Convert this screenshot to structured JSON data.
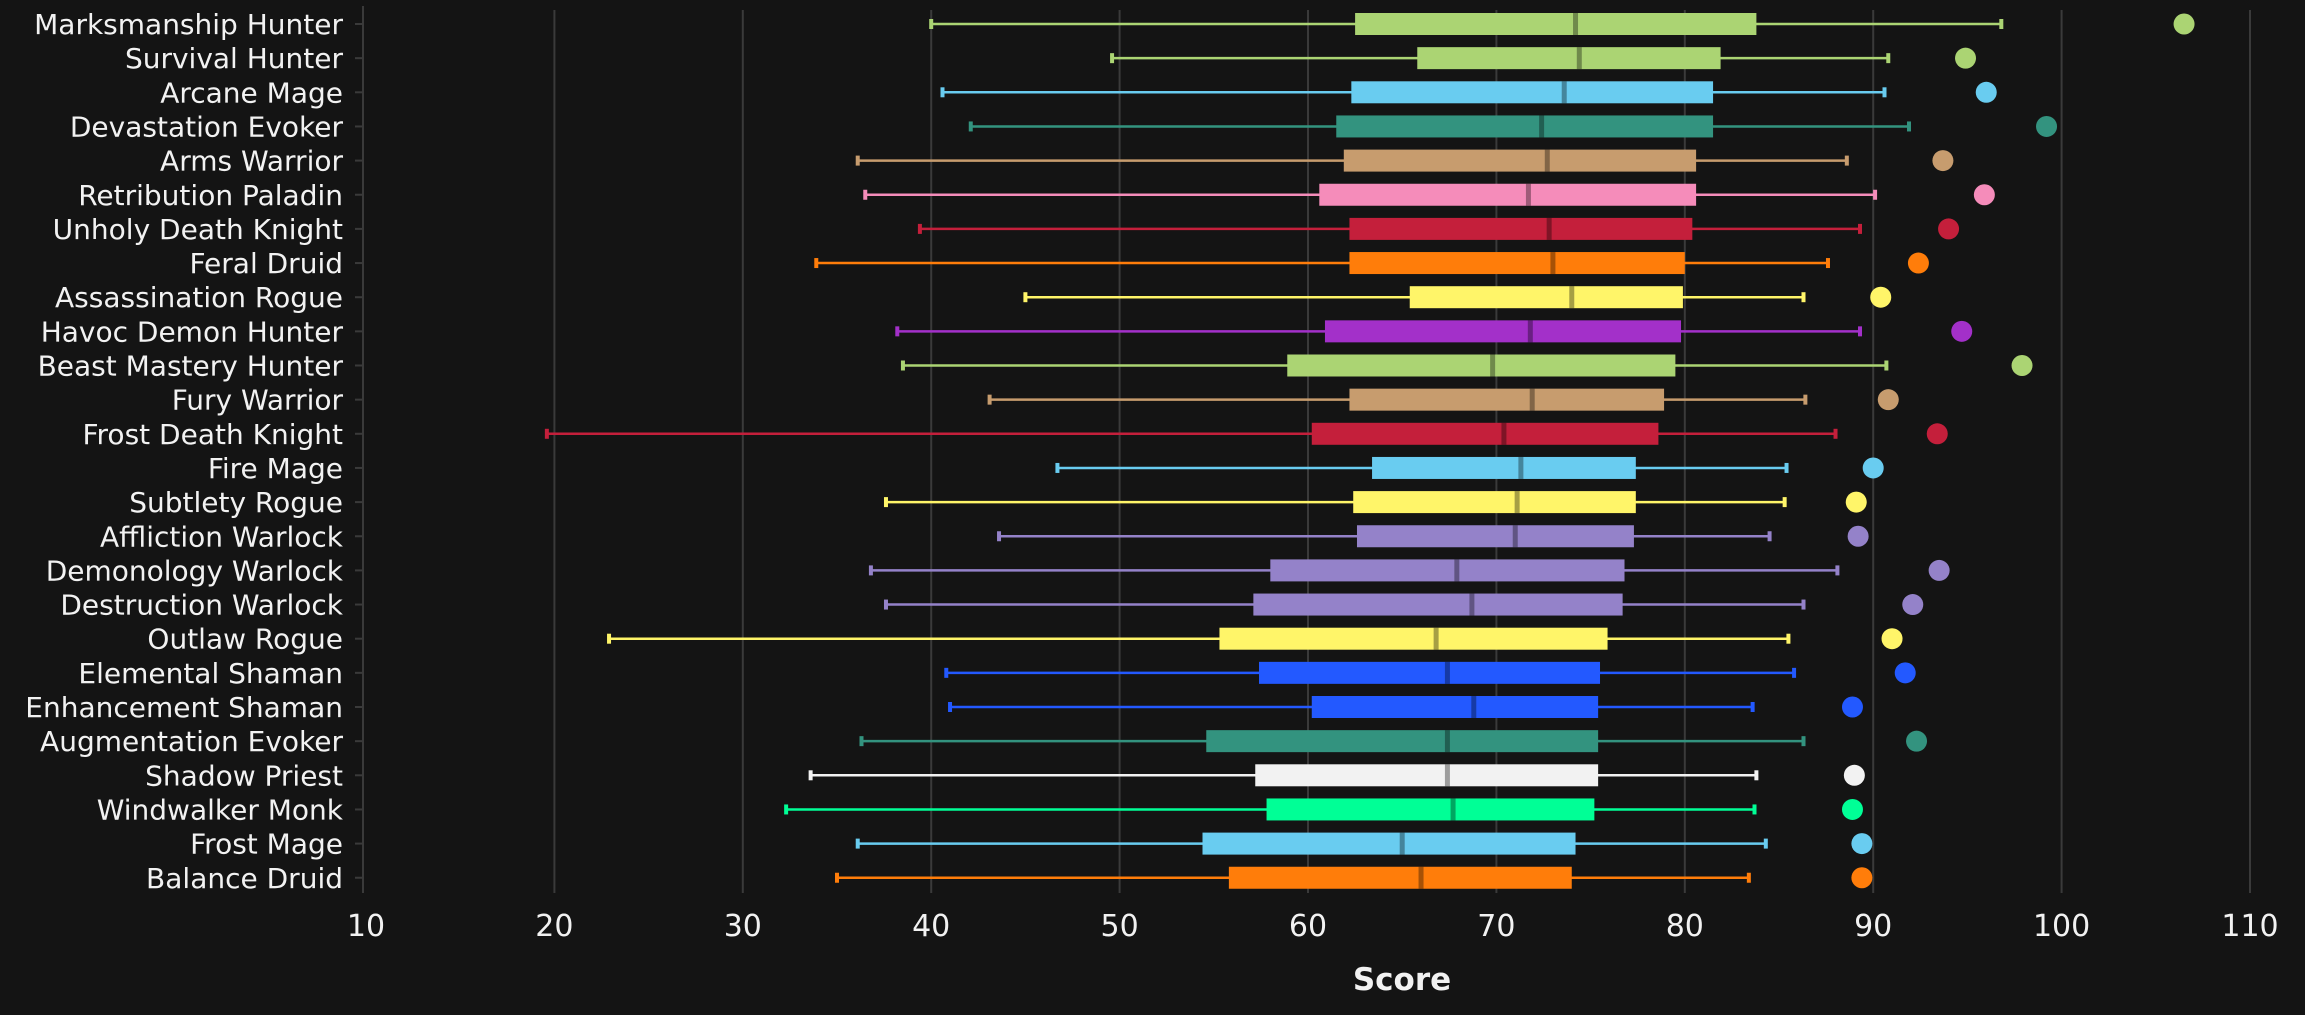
{
  "chart_data": {
    "type": "boxplot",
    "xlabel": "Score",
    "xlim": [
      10,
      110
    ],
    "xticks": [
      10,
      20,
      30,
      40,
      50,
      60,
      70,
      80,
      90,
      100,
      110
    ],
    "grid": "vertical",
    "series": [
      {
        "name": "Marksmanship Hunter",
        "color": "#abd473",
        "min": 40.0,
        "q1": 62.5,
        "median": 74.2,
        "q3": 83.8,
        "max": 96.8,
        "outlier": 106.5
      },
      {
        "name": "Survival Hunter",
        "color": "#abd473",
        "min": 49.6,
        "q1": 65.8,
        "median": 74.4,
        "q3": 81.9,
        "max": 90.8,
        "outlier": 94.9
      },
      {
        "name": "Arcane Mage",
        "color": "#69ccf0",
        "min": 40.6,
        "q1": 62.3,
        "median": 73.6,
        "q3": 81.5,
        "max": 90.6,
        "outlier": 96.0
      },
      {
        "name": "Devastation Evoker",
        "color": "#33937f",
        "min": 42.1,
        "q1": 61.5,
        "median": 72.4,
        "q3": 81.5,
        "max": 91.9,
        "outlier": 99.2
      },
      {
        "name": "Arms Warrior",
        "color": "#c79c6e",
        "min": 36.1,
        "q1": 61.9,
        "median": 72.7,
        "q3": 80.6,
        "max": 88.6,
        "outlier": 93.7
      },
      {
        "name": "Retribution Paladin",
        "color": "#f58cba",
        "min": 36.5,
        "q1": 60.6,
        "median": 71.7,
        "q3": 80.6,
        "max": 90.1,
        "outlier": 95.9
      },
      {
        "name": "Unholy Death Knight",
        "color": "#c41f3b",
        "min": 39.4,
        "q1": 62.2,
        "median": 72.8,
        "q3": 80.4,
        "max": 89.3,
        "outlier": 94.0
      },
      {
        "name": "Feral Druid",
        "color": "#ff7d0a",
        "min": 33.9,
        "q1": 62.2,
        "median": 73.0,
        "q3": 80.0,
        "max": 87.6,
        "outlier": 92.4
      },
      {
        "name": "Assassination Rogue",
        "color": "#fff569",
        "min": 45.0,
        "q1": 65.4,
        "median": 74.0,
        "q3": 79.9,
        "max": 86.3,
        "outlier": 90.4
      },
      {
        "name": "Havoc Demon Hunter",
        "color": "#a330c9",
        "min": 38.2,
        "q1": 60.9,
        "median": 71.8,
        "q3": 79.8,
        "max": 89.3,
        "outlier": 94.7
      },
      {
        "name": "Beast Mastery Hunter",
        "color": "#abd473",
        "min": 38.5,
        "q1": 58.9,
        "median": 69.8,
        "q3": 79.5,
        "max": 90.7,
        "outlier": 97.9
      },
      {
        "name": "Fury Warrior",
        "color": "#c79c6e",
        "min": 43.1,
        "q1": 62.2,
        "median": 71.9,
        "q3": 78.9,
        "max": 86.4,
        "outlier": 90.8
      },
      {
        "name": "Frost Death Knight",
        "color": "#c41f3b",
        "min": 19.6,
        "q1": 60.2,
        "median": 70.4,
        "q3": 78.6,
        "max": 88.0,
        "outlier": 93.4
      },
      {
        "name": "Fire Mage",
        "color": "#69ccf0",
        "min": 46.7,
        "q1": 63.4,
        "median": 71.3,
        "q3": 77.4,
        "max": 85.4,
        "outlier": 90.0
      },
      {
        "name": "Subtlety Rogue",
        "color": "#fff569",
        "min": 37.6,
        "q1": 62.4,
        "median": 71.1,
        "q3": 77.4,
        "max": 85.3,
        "outlier": 89.1
      },
      {
        "name": "Affliction Warlock",
        "color": "#9482c9",
        "min": 43.6,
        "q1": 62.6,
        "median": 71.0,
        "q3": 77.3,
        "max": 84.5,
        "outlier": 89.2
      },
      {
        "name": "Demonology Warlock",
        "color": "#9482c9",
        "min": 36.8,
        "q1": 58.0,
        "median": 67.9,
        "q3": 76.8,
        "max": 88.1,
        "outlier": 93.5
      },
      {
        "name": "Destruction Warlock",
        "color": "#9482c9",
        "min": 37.6,
        "q1": 57.1,
        "median": 68.7,
        "q3": 76.7,
        "max": 86.3,
        "outlier": 92.1
      },
      {
        "name": "Outlaw Rogue",
        "color": "#fff569",
        "min": 22.9,
        "q1": 55.3,
        "median": 66.8,
        "q3": 75.9,
        "max": 85.5,
        "outlier": 91.0
      },
      {
        "name": "Elemental Shaman",
        "color": "#2359ff",
        "min": 40.8,
        "q1": 57.4,
        "median": 67.4,
        "q3": 75.5,
        "max": 85.8,
        "outlier": 91.7
      },
      {
        "name": "Enhancement Shaman",
        "color": "#2359ff",
        "min": 41.0,
        "q1": 60.2,
        "median": 68.8,
        "q3": 75.4,
        "max": 83.6,
        "outlier": 88.9
      },
      {
        "name": "Augmentation Evoker",
        "color": "#33937f",
        "min": 36.3,
        "q1": 54.6,
        "median": 67.4,
        "q3": 75.4,
        "max": 86.3,
        "outlier": 92.3
      },
      {
        "name": "Shadow Priest",
        "color": "#f2f2f2",
        "min": 33.6,
        "q1": 57.2,
        "median": 67.4,
        "q3": 75.4,
        "max": 83.8,
        "outlier": 89.0
      },
      {
        "name": "Windwalker Monk",
        "color": "#00ff96",
        "min": 32.3,
        "q1": 57.8,
        "median": 67.7,
        "q3": 75.2,
        "max": 83.7,
        "outlier": 88.9
      },
      {
        "name": "Frost Mage",
        "color": "#69ccf0",
        "min": 36.1,
        "q1": 54.4,
        "median": 65.0,
        "q3": 74.2,
        "max": 84.3,
        "outlier": 89.4
      },
      {
        "name": "Balance Druid",
        "color": "#ff7d0a",
        "min": 35.0,
        "q1": 55.8,
        "median": 66.0,
        "q3": 74.0,
        "max": 83.4,
        "outlier": 89.4
      }
    ]
  }
}
